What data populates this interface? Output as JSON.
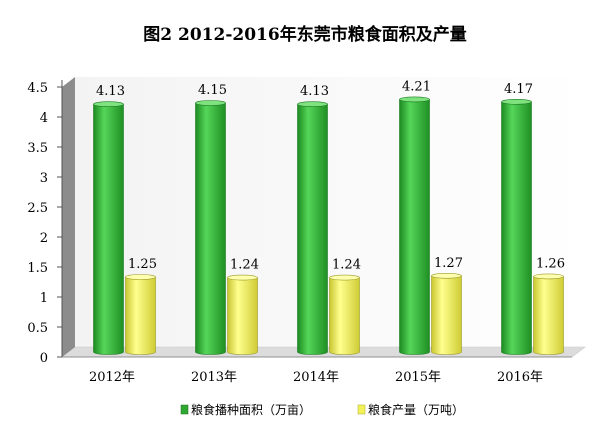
{
  "chart_data": {
    "type": "bar",
    "title": "图2 2012-2016年东莞市粮食面积及产量",
    "categories": [
      "2012年",
      "2013年",
      "2014年",
      "2015年",
      "2016年"
    ],
    "series": [
      {
        "name": "粮食播种面积（万亩）",
        "values": [
          4.13,
          4.15,
          4.13,
          4.21,
          4.17
        ],
        "color": "#2ea832"
      },
      {
        "name": "粮食产量（万吨）",
        "values": [
          1.25,
          1.24,
          1.24,
          1.27,
          1.26
        ],
        "color": "#f2f257"
      }
    ],
    "ylim": [
      0,
      4.5
    ],
    "yticks": [
      "0",
      "0.5",
      "1",
      "1.5",
      "2",
      "2.5",
      "3",
      "3.5",
      "4",
      "4.5"
    ],
    "grid": false,
    "legend": "bottom",
    "style": "3d-cylinder"
  }
}
